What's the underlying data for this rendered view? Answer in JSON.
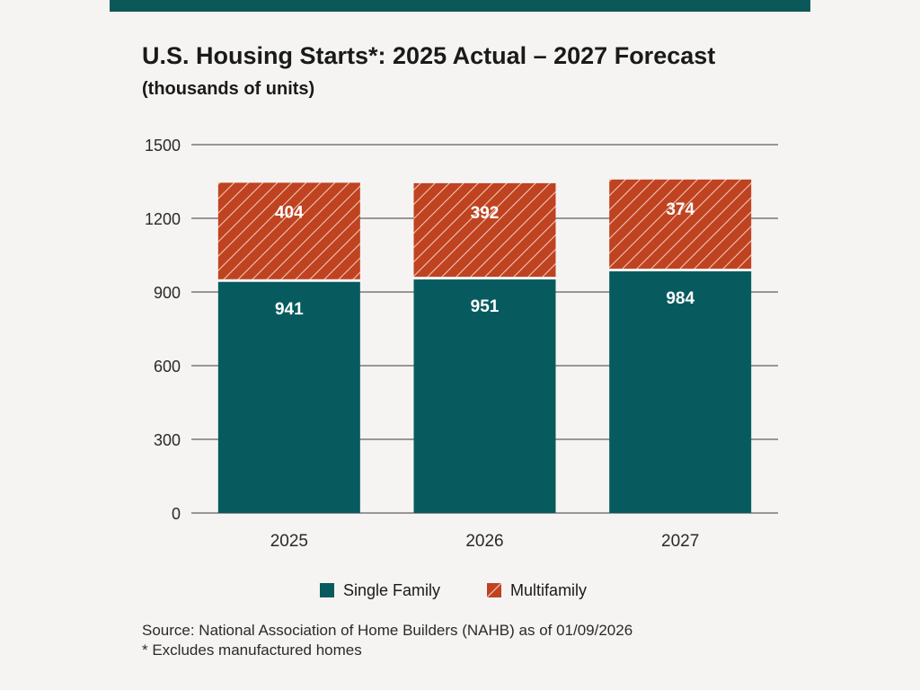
{
  "header": {
    "title": "U.S. Housing Starts*: 2025 Actual – 2027 Forecast",
    "subtitle": "(thousands of units)"
  },
  "colors": {
    "band": "#0b5858",
    "single_family": "#075b5f",
    "multifamily": "#bf4321",
    "grid": "#3a3a3a",
    "hatch": "#f1c6b3"
  },
  "chart_data": {
    "type": "bar",
    "stacked": true,
    "categories": [
      "2025",
      "2026",
      "2027"
    ],
    "series": [
      {
        "name": "Single Family",
        "values": [
          941,
          951,
          984
        ],
        "pattern": "solid"
      },
      {
        "name": "Multifamily",
        "values": [
          404,
          392,
          374
        ],
        "pattern": "hatched"
      }
    ],
    "ylim": [
      0,
      1500
    ],
    "yticks": [
      "0",
      "300",
      "600",
      "900",
      "1200",
      "1500"
    ],
    "grid": true,
    "legend": "bottom-center",
    "data_labels": true
  },
  "footer": {
    "source": "Source: National Association of Home Builders (NAHB) as of 01/09/2026",
    "note": "* Excludes manufactured homes"
  }
}
